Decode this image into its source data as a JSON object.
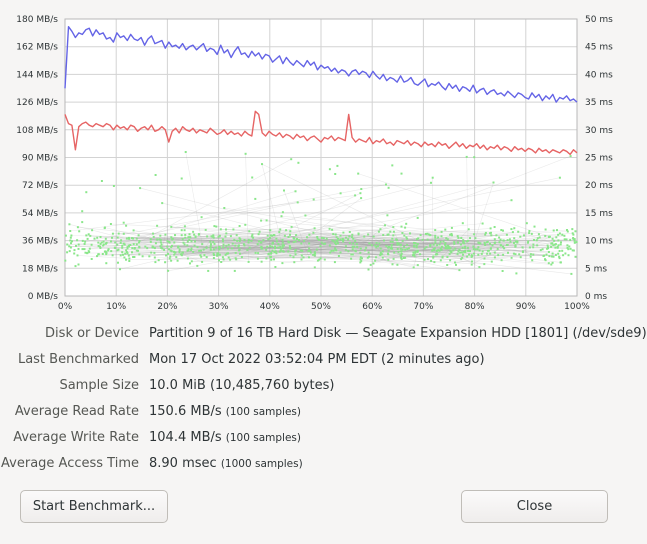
{
  "chart_data": {
    "type": "line",
    "left_axis": {
      "ticks": [
        "180 MB/s",
        "162 MB/s",
        "144 MB/s",
        "126 MB/s",
        "108 MB/s",
        "90 MB/s",
        "72 MB/s",
        "54 MB/s",
        "36 MB/s",
        "18 MB/s",
        "0 MB/s"
      ],
      "ylim": [
        0,
        180
      ]
    },
    "right_axis": {
      "ticks": [
        "50 ms",
        "45 ms",
        "40 ms",
        "35 ms",
        "30 ms",
        "25 ms",
        "20 ms",
        "15 ms",
        "10 ms",
        "5 ms",
        "0 ms"
      ],
      "ylim": [
        0,
        50
      ]
    },
    "x_ticks": [
      "0%",
      "10%",
      "20%",
      "30%",
      "40%",
      "50%",
      "60%",
      "70%",
      "80%",
      "90%",
      "100%"
    ],
    "grid": true,
    "series": [
      {
        "color": "#6464e6",
        "values": [
          135,
          175,
          172,
          168,
          171,
          170,
          173,
          174,
          169,
          173,
          170,
          171,
          167,
          168,
          165,
          171,
          168,
          169,
          166,
          170,
          167,
          166,
          168,
          163,
          167,
          169,
          164,
          165,
          166,
          161,
          165,
          162,
          163,
          161,
          164,
          160,
          162,
          163,
          160,
          162,
          164,
          159,
          161,
          160,
          157,
          163,
          158,
          160,
          155,
          159,
          162,
          157,
          158,
          155,
          159,
          156,
          158,
          154,
          157,
          156,
          152,
          154,
          156,
          151,
          155,
          152,
          150,
          153,
          151,
          149,
          153,
          150,
          152,
          147,
          150,
          148,
          149,
          146,
          148,
          145,
          147,
          146,
          143,
          146,
          147,
          144,
          146,
          145,
          142,
          146,
          143,
          141,
          144,
          140,
          142,
          141,
          139,
          143,
          139,
          140,
          142,
          138,
          137,
          139,
          141,
          136,
          138,
          137,
          139,
          136,
          134,
          138,
          135,
          137,
          133,
          136,
          135,
          133,
          137,
          132,
          134,
          135,
          131,
          133,
          134,
          131,
          132,
          130,
          133,
          131,
          129,
          132,
          131,
          129,
          128,
          132,
          129,
          131,
          127,
          130,
          128,
          131,
          126,
          129,
          128,
          130,
          127,
          128,
          126
        ]
      },
      {
        "color": "#e66464",
        "values": [
          118,
          112,
          111,
          95,
          110,
          112,
          113,
          111,
          110,
          112,
          111,
          110,
          112,
          111,
          108,
          111,
          109,
          110,
          108,
          111,
          110,
          107,
          109,
          110,
          108,
          111,
          107,
          108,
          110,
          108,
          100,
          107,
          109,
          106,
          110,
          108,
          107,
          109,
          106,
          108,
          107,
          106,
          109,
          107,
          105,
          106,
          108,
          105,
          107,
          105,
          106,
          104,
          107,
          105,
          104,
          120,
          118,
          106,
          104,
          107,
          105,
          104,
          106,
          103,
          105,
          104,
          102,
          105,
          103,
          104,
          101,
          103,
          104,
          102,
          100,
          103,
          102,
          104,
          101,
          103,
          102,
          101,
          118,
          103,
          100,
          102,
          101,
          100,
          103,
          99,
          101,
          100,
          102,
          99,
          100,
          98,
          101,
          100,
          99,
          101,
          98,
          100,
          99,
          97,
          100,
          98,
          99,
          97,
          100,
          98,
          99,
          96,
          98,
          100,
          97,
          99,
          96,
          98,
          97,
          99,
          96,
          98,
          95,
          97,
          96,
          98,
          95,
          97,
          96,
          94,
          97,
          95,
          96,
          94,
          96,
          95,
          93,
          96,
          94,
          95,
          93,
          95,
          94,
          93,
          95,
          94,
          92,
          95,
          93
        ]
      }
    ],
    "access_time_ms": {
      "samples": 1000,
      "mean": 8.9,
      "range": [
        2,
        26
      ]
    }
  },
  "info": {
    "rows": [
      {
        "label": "Disk or Device",
        "value": "Partition 9 of 16 TB Hard Disk — Seagate Expansion HDD [1801] (/dev/sde9)",
        "note": ""
      },
      {
        "label": "Last Benchmarked",
        "value": "Mon 17 Oct 2022 03:52:04 PM EDT (2 minutes ago)",
        "note": ""
      },
      {
        "label": "Sample Size",
        "value": "10.0 MiB (10,485,760 bytes)",
        "note": ""
      },
      {
        "label": "Average Read Rate",
        "value": "150.6 MB/s",
        "note": "(100 samples)"
      },
      {
        "label": "Average Write Rate",
        "value": "104.4 MB/s",
        "note": "(100 samples)"
      },
      {
        "label": "Average Access Time",
        "value": "8.90 msec",
        "note": "(1000 samples)"
      }
    ]
  },
  "buttons": {
    "start": "Start Benchmark...",
    "close": "Close"
  },
  "colors": {
    "read": "#6464e6",
    "write": "#e66464",
    "access": "#8ae68a"
  }
}
